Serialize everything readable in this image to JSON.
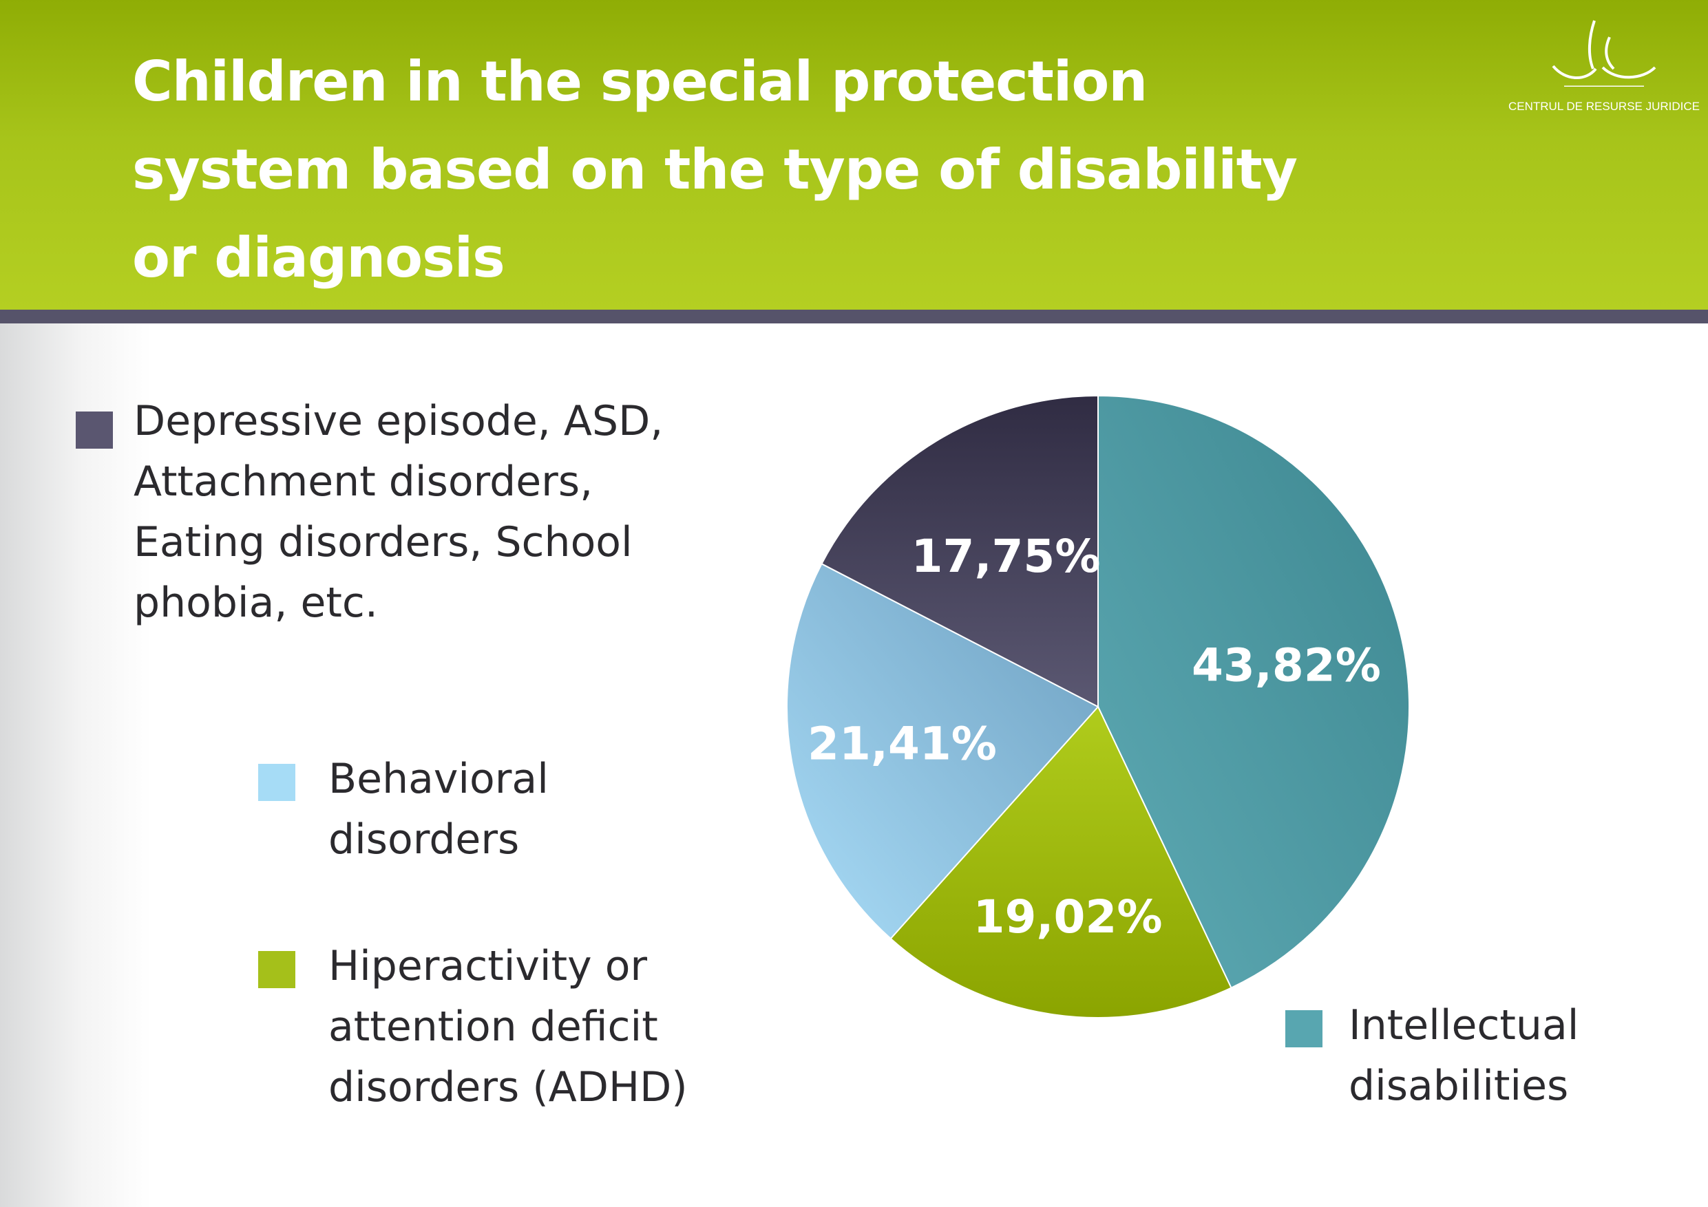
{
  "header": {
    "title": "Children in the special protection system based on the type of disability or diagnosis",
    "logo_text": "CENTRUL DE RESURSE JURIDICE"
  },
  "colors": {
    "header_green": "#a7c41a",
    "divider": "#56536a",
    "intellectual": "#4e9ea8",
    "adhd": "#9db711",
    "behavioral": "#9fd3ef",
    "depressive": "#4c4962"
  },
  "chart_data": {
    "type": "pie",
    "title": "",
    "slices": [
      {
        "label": "Intellectual disabilities",
        "value": 43.82,
        "display": "43,82%",
        "color": "#4e9ea8"
      },
      {
        "label": "Hiperactivity or attention deficit disorders (ADHD)",
        "value": 19.02,
        "display": "19,02%",
        "color": "#9db711"
      },
      {
        "label": "Behavioral disorders",
        "value": 21.41,
        "display": "21,41%",
        "color": "#9fd3ef"
      },
      {
        "label": "Depressive episode, ASD, Attachment disorders, Eating disorders, School phobia, etc.",
        "value": 17.75,
        "display": "17,75%",
        "color": "#4c4962"
      }
    ],
    "start_angle": "12 o'clock, clockwise",
    "legend": "separate labels around chart"
  }
}
